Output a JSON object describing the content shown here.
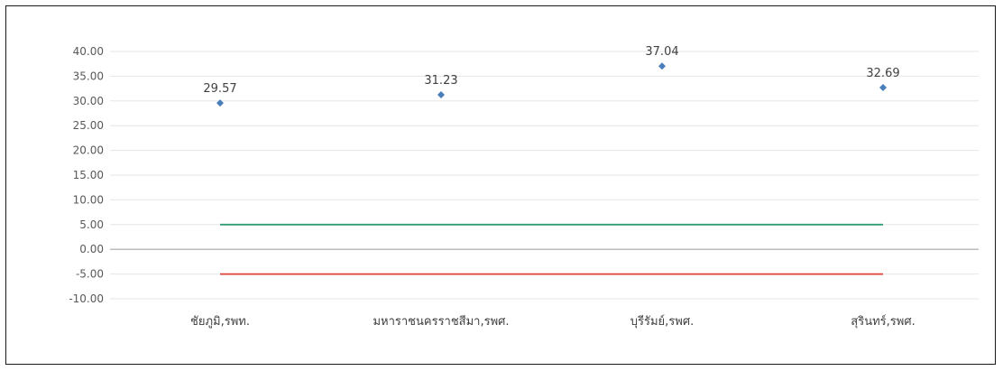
{
  "chart_data": {
    "type": "scatter",
    "categories": [
      "ชัยภูมิ,รพท.",
      "มหาราชนครราชสีมา,รพศ.",
      "บุรีรัมย์,รพศ.",
      "สุรินทร์,รพศ."
    ],
    "series": [
      {
        "values": [
          29.57,
          31.23,
          37.04,
          32.69
        ],
        "labels": [
          "29.57",
          "31.23",
          "37.04",
          "32.69"
        ],
        "color": "#4a7ebb",
        "marker": "diamond"
      }
    ],
    "reference_lines": [
      {
        "value": 5,
        "color": "#2e9e74"
      },
      {
        "value": -5,
        "color": "#e0403a"
      }
    ],
    "ylim": [
      -10,
      40
    ],
    "ytick_step": 5,
    "ytick_labels": [
      "-10.00",
      "-5.00",
      "0.00",
      "5.00",
      "10.00",
      "15.00",
      "20.00",
      "25.00",
      "30.00",
      "35.00",
      "40.00"
    ],
    "zero_line_color": "#a6a6a6",
    "grid": true,
    "grid_color": "#e6e6e6",
    "title": "",
    "xlabel": "",
    "ylabel": ""
  }
}
